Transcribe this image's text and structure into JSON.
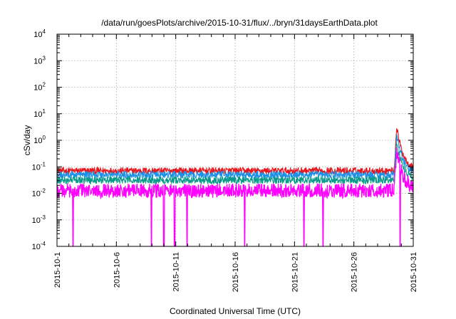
{
  "chart_data": {
    "type": "line",
    "title": "/data/run/goesPlots/archive/2015-10-31/flux/../bryn/31daysEarthData.plot",
    "xlabel": "Coordinated Universal Time (UTC)",
    "ylabel": "cSv/day",
    "yscale": "log",
    "ylim_exponents": [
      -4,
      4
    ],
    "y_tick_base": "10",
    "y_tick_exponents": [
      "-4",
      "-3",
      "-2",
      "-1",
      "0",
      "1",
      "2",
      "3",
      "4"
    ],
    "xlim": [
      "2015-10-01",
      "2015-10-31"
    ],
    "x_ticks": [
      {
        "day": 1,
        "label": "2015-10-1"
      },
      {
        "day": 6,
        "label": "2015-10-6"
      },
      {
        "day": 11,
        "label": "2015-10-11"
      },
      {
        "day": 16,
        "label": "2015-10-16"
      },
      {
        "day": 21,
        "label": "2015-10-21"
      },
      {
        "day": 26,
        "label": "2015-10-26"
      },
      {
        "day": 31,
        "label": "2015-10-31"
      }
    ],
    "grid": true,
    "series": [
      {
        "color": "#e8151b",
        "base_log10": -1.15,
        "noise": 0.13,
        "peak_log10": 0.55
      },
      {
        "color": "#1c8fe6",
        "base_log10": -1.3,
        "noise": 0.14,
        "peak_log10": 0.25
      },
      {
        "color": "#0a9a8a",
        "base_log10": -1.5,
        "noise": 0.14,
        "peak_log10": -0.05
      },
      {
        "color": "#ff00ff",
        "base_log10": -1.9,
        "noise": 0.27,
        "peak_log10": -0.35,
        "dropouts_day": [
          2.35,
          8.95,
          10.0,
          10.9,
          11.95,
          16.8,
          21.8,
          23.4,
          29.9
        ]
      }
    ],
    "event": {
      "onset_day": 29.4,
      "peak_day": 29.6
    }
  }
}
